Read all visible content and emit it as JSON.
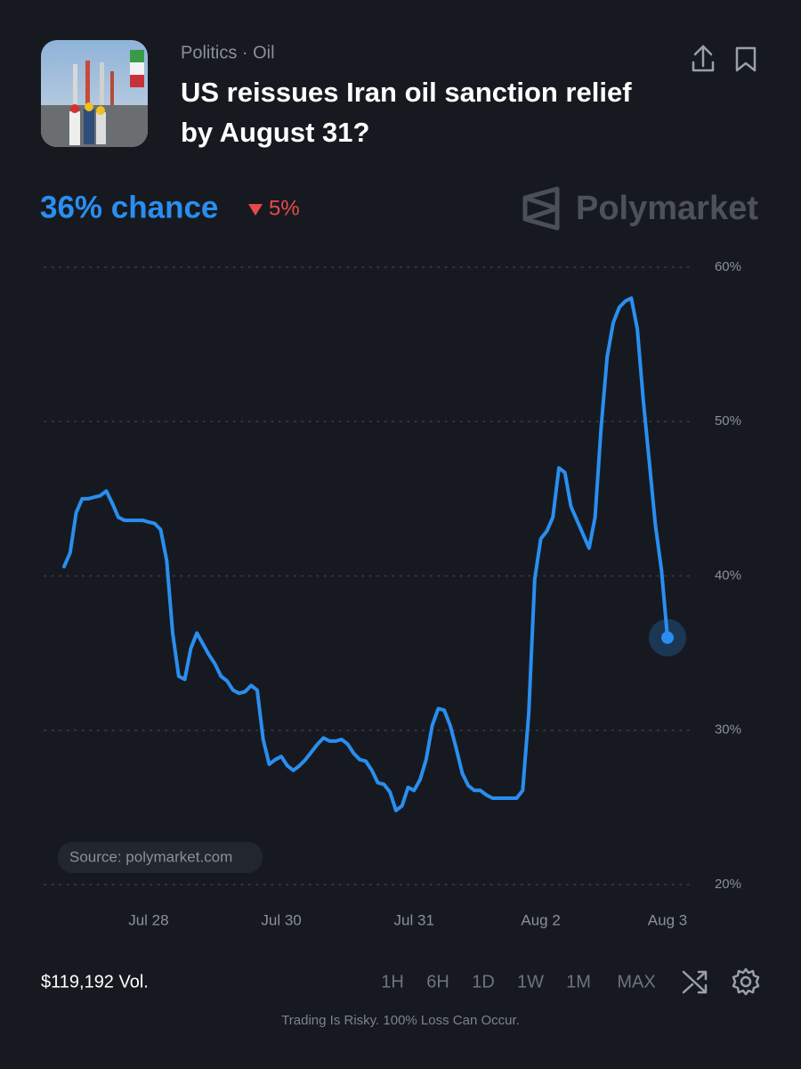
{
  "header": {
    "category": "Politics · Oil",
    "title_line1": "US reissues Iran oil sanction relief",
    "title_line2": "by August 31?"
  },
  "chance": "36% chance",
  "change": "5%",
  "brand": "Polymarket",
  "source": "Source: polymarket.com",
  "volume": "$119,192 Vol.",
  "ranges": [
    "1H",
    "6H",
    "1D",
    "1W",
    "1M",
    "MAX"
  ],
  "disclaimer": "Trading Is Risky. 100% Loss Can Occur.",
  "chart_data": {
    "type": "line",
    "color": "#2a8ef0",
    "grid": true,
    "ylim": [
      20,
      60
    ],
    "yticks": [
      {
        "value": 20,
        "label": "20%"
      },
      {
        "value": 30,
        "label": "30%"
      },
      {
        "value": 40,
        "label": "40%"
      },
      {
        "value": 50,
        "label": "50%"
      },
      {
        "value": 60,
        "label": "60%"
      }
    ],
    "categories": [
      null,
      null,
      null,
      null,
      null,
      null,
      null,
      null,
      null,
      null,
      null,
      null,
      null,
      null,
      "Jul 28",
      null,
      null,
      null,
      null,
      null,
      null,
      null,
      null,
      null,
      null,
      null,
      null,
      null,
      null,
      null,
      null,
      null,
      null,
      null,
      null,
      null,
      "Jul 30",
      null,
      null,
      null,
      null,
      null,
      null,
      null,
      null,
      null,
      null,
      null,
      null,
      null,
      null,
      null,
      null,
      null,
      null,
      null,
      null,
      null,
      "Jul 31",
      null,
      null,
      null,
      null,
      null,
      null,
      null,
      null,
      null,
      null,
      null,
      null,
      null,
      null,
      null,
      null,
      null,
      null,
      null,
      null,
      "Aug 2",
      null,
      null,
      null,
      null,
      null,
      null,
      null,
      null,
      null,
      null,
      null,
      null,
      null,
      null,
      null,
      null,
      null,
      null,
      null,
      null,
      "Aug 3"
    ],
    "values": [
      40.6,
      41.5,
      44.1,
      45.0,
      45.0,
      45.1,
      45.2,
      45.5,
      44.7,
      43.8,
      43.6,
      43.6,
      43.6,
      43.6,
      43.5,
      43.4,
      43.0,
      41.0,
      36.3,
      33.5,
      33.3,
      35.3,
      36.3,
      35.6,
      34.9,
      34.3,
      33.5,
      33.2,
      32.6,
      32.4,
      32.5,
      32.9,
      32.6,
      29.4,
      27.8,
      28.1,
      28.3,
      27.7,
      27.4,
      27.7,
      28.1,
      28.6,
      29.1,
      29.5,
      29.3,
      29.3,
      29.4,
      29.1,
      28.5,
      28.1,
      28.0,
      27.4,
      26.6,
      26.5,
      26.0,
      24.8,
      25.1,
      26.3,
      26.1,
      26.8,
      28.1,
      30.3,
      31.4,
      31.3,
      30.3,
      28.8,
      27.2,
      26.4,
      26.1,
      26.1,
      25.8,
      25.6,
      25.6,
      25.6,
      25.6,
      25.6,
      26.1,
      31.1,
      39.8,
      42.4,
      42.9,
      43.8,
      47.0,
      46.7,
      44.5,
      43.6,
      42.7,
      41.8,
      43.8,
      49.6,
      54.2,
      56.4,
      57.4,
      57.8,
      58.0,
      56.0,
      51.3,
      47.3,
      43.3,
      40.4,
      36
    ]
  }
}
